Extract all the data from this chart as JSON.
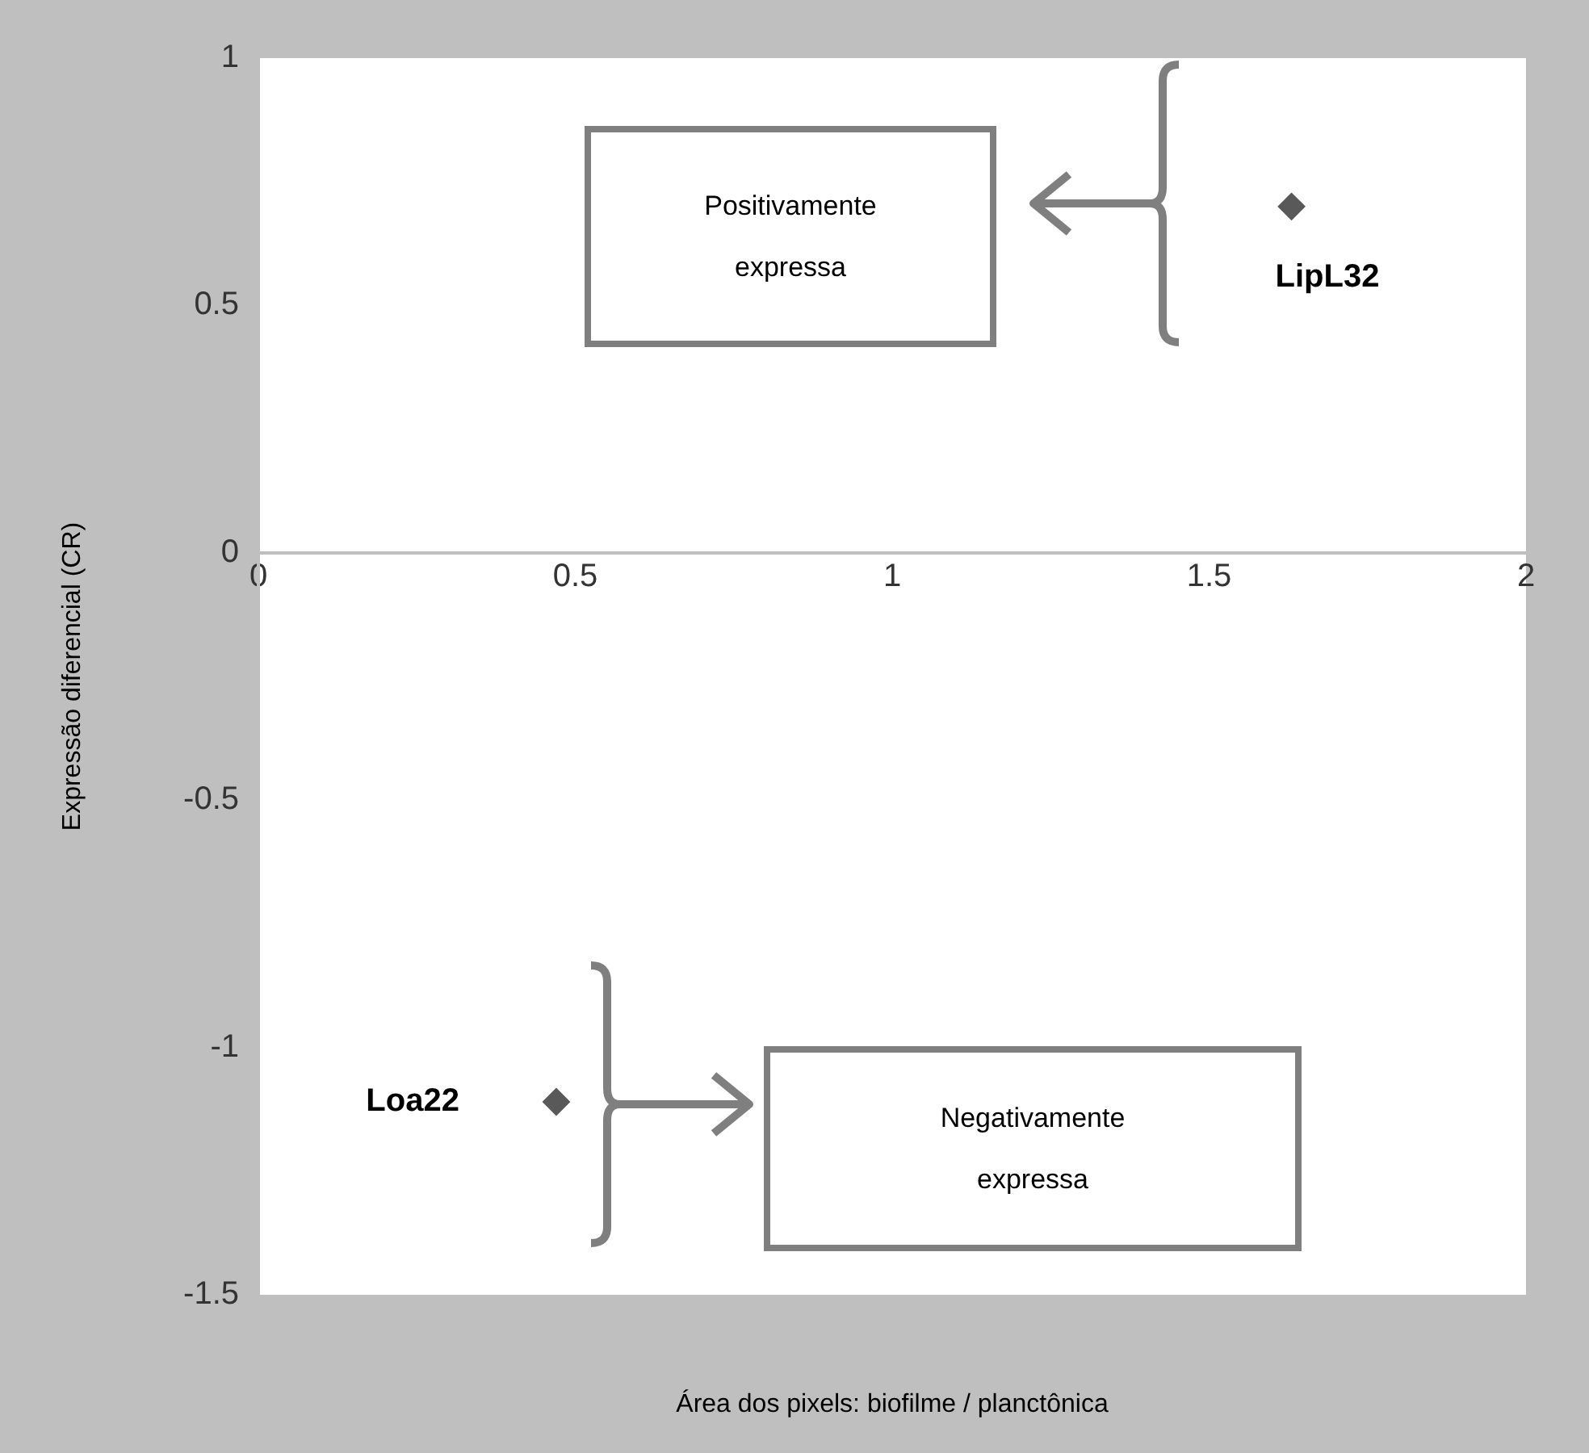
{
  "chart_data": {
    "type": "scatter",
    "xlabel": "Área dos pixels: biofilme / planctônica",
    "ylabel": "Expressão diferencial (CR)",
    "series": [
      {
        "color": "#595959",
        "x": [
          1.63,
          0.47
        ],
        "values": [
          0.7,
          -1.11
        ]
      }
    ],
    "xlim": [
      0,
      2
    ],
    "xticks": [
      0,
      0.5,
      1,
      1.5,
      2
    ],
    "ylim": [
      -1.5,
      1
    ],
    "yticks": [
      -1.5,
      -1,
      -0.5,
      0,
      0.5,
      1
    ],
    "marker": "diamond",
    "grid": false,
    "legend": false,
    "annotations": [
      {
        "text": "LipL32",
        "x": 1.63,
        "y": 0.7
      },
      {
        "text": "Loa22",
        "x": 0.47,
        "y": -1.11
      },
      "Positivamente expressa",
      "Negativamente expressa"
    ]
  }
}
